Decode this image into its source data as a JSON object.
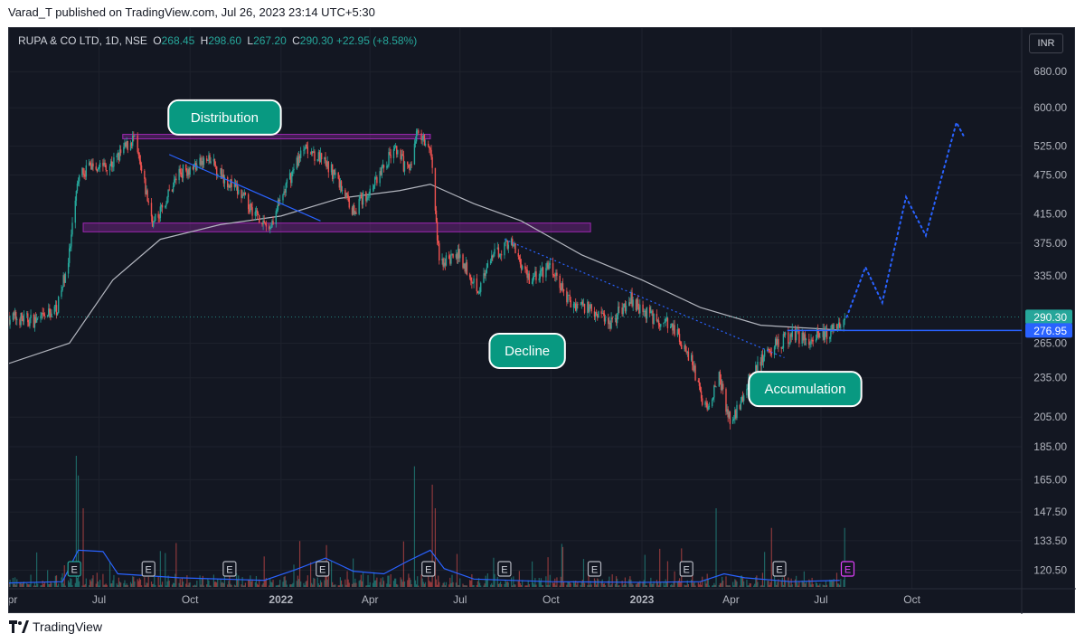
{
  "header": {
    "text": "Varad_T published on TradingView.com, Jul 26, 2023 23:14 UTC+5:30"
  },
  "legend": {
    "symbol": "RUPA & CO LTD, 1D, NSE",
    "open_label": "O",
    "open": "268.45",
    "high_label": "H",
    "high": "298.60",
    "low_label": "L",
    "low": "267.20",
    "close_label": "C",
    "close": "290.30",
    "change": "+22.95 (+8.58%)"
  },
  "currency": "INR",
  "footer": {
    "brand": "TradingView"
  },
  "colors": {
    "background": "#131722",
    "up": "#26a69a",
    "down": "#ef5350",
    "moving_average": "#b2b5be",
    "zone": "#9c27b0",
    "trendline": "#2962ff",
    "label_fill": "#089981",
    "volume_ma": "#2962ff"
  },
  "chart_data": {
    "type": "candlestick",
    "symbol": "RUPA & CO LTD",
    "interval": "1D",
    "exchange": "NSE",
    "y_axis": {
      "scale": "log",
      "ticks": [
        "680.00",
        "600.00",
        "525.00",
        "475.00",
        "415.00",
        "375.00",
        "335.00",
        "265.00",
        "235.00",
        "205.00",
        "185.00",
        "165.00",
        "147.50",
        "133.50",
        "120.50"
      ],
      "range": [
        113,
        720
      ]
    },
    "x_axis": {
      "ticks": [
        {
          "label": "Apr",
          "date": "2021-04-01"
        },
        {
          "label": "Jul",
          "date": "2021-07-01"
        },
        {
          "label": "Oct",
          "date": "2021-10-01"
        },
        {
          "label": "2022",
          "date": "2022-01-01",
          "bold": true
        },
        {
          "label": "Apr",
          "date": "2022-04-01"
        },
        {
          "label": "Jul",
          "date": "2022-07-01"
        },
        {
          "label": "Oct",
          "date": "2022-10-01"
        },
        {
          "label": "2023",
          "date": "2023-01-01",
          "bold": true
        },
        {
          "label": "Apr",
          "date": "2023-04-01"
        },
        {
          "label": "Jul",
          "date": "2023-07-01"
        },
        {
          "label": "Oct",
          "date": "2023-10-01"
        }
      ],
      "range": [
        "2021-04-01",
        "2024-01-20"
      ]
    },
    "price_path": [
      [
        "2021-04-01",
        290
      ],
      [
        "2021-05-01",
        286
      ],
      [
        "2021-05-20",
        300
      ],
      [
        "2021-06-01",
        360
      ],
      [
        "2021-06-10",
        470
      ],
      [
        "2021-06-20",
        490
      ],
      [
        "2021-07-15",
        495
      ],
      [
        "2021-08-05",
        540
      ],
      [
        "2021-08-25",
        400
      ],
      [
        "2021-09-20",
        480
      ],
      [
        "2021-10-20",
        500
      ],
      [
        "2021-11-20",
        445
      ],
      [
        "2021-12-20",
        395
      ],
      [
        "2022-01-10",
        470
      ],
      [
        "2022-01-25",
        530
      ],
      [
        "2022-02-25",
        475
      ],
      [
        "2022-03-15",
        420
      ],
      [
        "2022-04-01",
        450
      ],
      [
        "2022-04-25",
        520
      ],
      [
        "2022-05-10",
        480
      ],
      [
        "2022-05-20",
        560
      ],
      [
        "2022-06-01",
        520
      ],
      [
        "2022-06-10",
        350
      ],
      [
        "2022-06-30",
        360
      ],
      [
        "2022-07-20",
        320
      ],
      [
        "2022-08-05",
        360
      ],
      [
        "2022-08-20",
        378
      ],
      [
        "2022-09-10",
        330
      ],
      [
        "2022-09-30",
        345
      ],
      [
        "2022-10-20",
        305
      ],
      [
        "2022-11-10",
        300
      ],
      [
        "2022-12-01",
        285
      ],
      [
        "2022-12-20",
        310
      ],
      [
        "2023-01-10",
        290
      ],
      [
        "2023-02-01",
        280
      ],
      [
        "2023-02-20",
        250
      ],
      [
        "2023-03-05",
        210
      ],
      [
        "2023-03-20",
        235
      ],
      [
        "2023-04-01",
        200
      ],
      [
        "2023-04-20",
        235
      ],
      [
        "2023-05-10",
        260
      ],
      [
        "2023-06-01",
        272
      ],
      [
        "2023-06-20",
        270
      ],
      [
        "2023-07-10",
        275
      ],
      [
        "2023-07-25",
        290.3
      ]
    ],
    "moving_average": [
      [
        "2021-04-01",
        247
      ],
      [
        "2021-06-01",
        265
      ],
      [
        "2021-07-15",
        330
      ],
      [
        "2021-09-01",
        380
      ],
      [
        "2021-11-01",
        400
      ],
      [
        "2022-01-01",
        412
      ],
      [
        "2022-03-01",
        438
      ],
      [
        "2022-05-01",
        450
      ],
      [
        "2022-06-01",
        460
      ],
      [
        "2022-07-15",
        430
      ],
      [
        "2022-09-01",
        405
      ],
      [
        "2022-11-01",
        360
      ],
      [
        "2023-01-01",
        330
      ],
      [
        "2023-03-01",
        300
      ],
      [
        "2023-05-01",
        282
      ],
      [
        "2023-07-26",
        277
      ]
    ],
    "last_price": 290.3,
    "horizontal_level": 276.95,
    "zones": [
      {
        "price_top": 547,
        "price_bottom": 540,
        "from": "2021-07-25",
        "to": "2022-06-01"
      },
      {
        "price_top": 402,
        "price_bottom": 390,
        "from": "2021-06-15",
        "to": "2022-11-10"
      }
    ],
    "trendlines": [
      {
        "from": [
          "2021-09-10",
          510
        ],
        "to": [
          "2022-02-10",
          405
        ],
        "style": "solid"
      },
      {
        "from": [
          "2022-08-15",
          380
        ],
        "to": [
          "2023-05-25",
          252
        ],
        "style": "dotted"
      }
    ],
    "projection": [
      [
        "2023-07-27",
        290
      ],
      [
        "2023-08-15",
        345
      ],
      [
        "2023-09-01",
        305
      ],
      [
        "2023-09-25",
        440
      ],
      [
        "2023-10-15",
        385
      ],
      [
        "2023-11-15",
        570
      ],
      [
        "2023-11-22",
        545
      ]
    ],
    "annotations": [
      {
        "text": "Distribution",
        "price": 580,
        "date": "2021-11-05"
      },
      {
        "text": "Decline",
        "price": 258,
        "date": "2022-09-07"
      },
      {
        "text": "Accumulation",
        "price": 226,
        "date": "2023-06-15"
      }
    ],
    "earnings_markers": [
      {
        "date": "2021-06-06",
        "label": "E",
        "highlight": true
      },
      {
        "date": "2021-08-20",
        "label": "E"
      },
      {
        "date": "2021-11-10",
        "label": "E"
      },
      {
        "date": "2022-02-12",
        "label": "E"
      },
      {
        "date": "2022-05-30",
        "label": "E"
      },
      {
        "date": "2022-08-15",
        "label": "E"
      },
      {
        "date": "2022-11-14",
        "label": "E"
      },
      {
        "date": "2023-02-15",
        "label": "E"
      },
      {
        "date": "2023-05-20",
        "label": "E"
      },
      {
        "date": "2023-07-28",
        "label": "E",
        "magenta": true
      }
    ]
  }
}
